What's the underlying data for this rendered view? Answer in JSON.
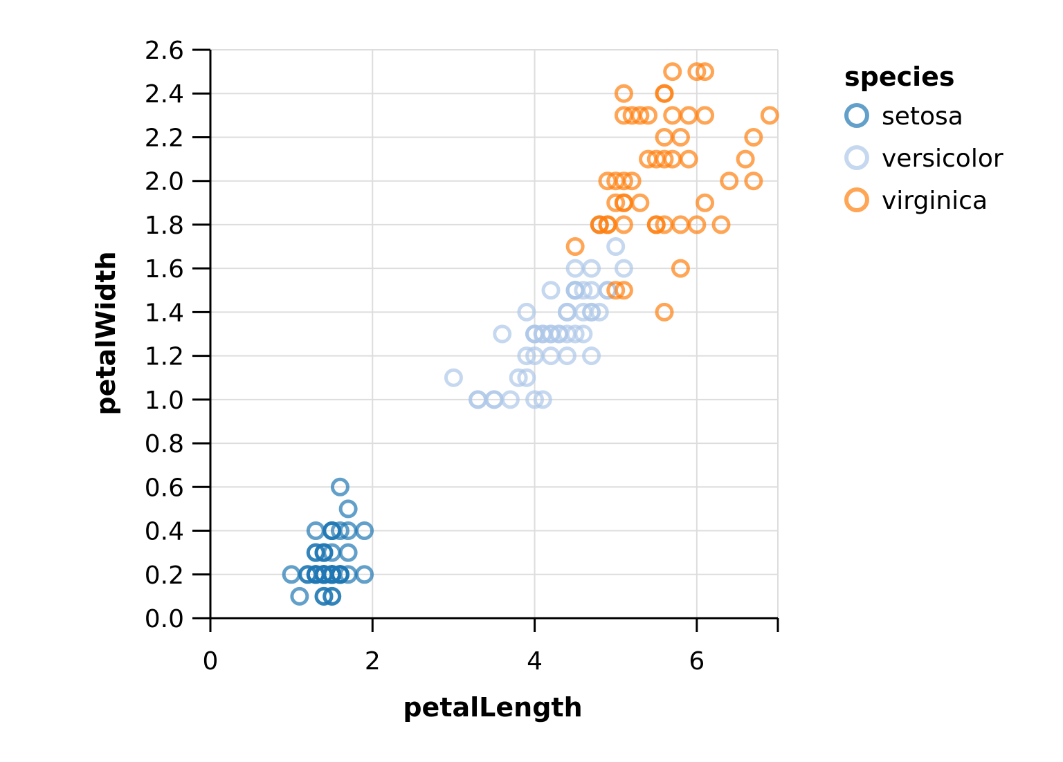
{
  "chart_data": {
    "type": "scatter",
    "xlabel": "petalLength",
    "ylabel": "petalWidth",
    "xlim": [
      0,
      7
    ],
    "ylim": [
      0,
      2.6
    ],
    "x_ticks": [
      0,
      2,
      4,
      6
    ],
    "y_ticks": [
      0.0,
      0.2,
      0.4,
      0.6,
      0.8,
      1.0,
      1.2,
      1.4,
      1.6,
      1.8,
      2.0,
      2.2,
      2.4,
      2.6
    ],
    "grid": true,
    "legend": {
      "title": "species",
      "placement": "right",
      "entries": [
        "setosa",
        "versicolor",
        "virginica"
      ]
    },
    "series": [
      {
        "name": "setosa",
        "color": "#1f77b4",
        "points": [
          [
            1.4,
            0.2
          ],
          [
            1.4,
            0.2
          ],
          [
            1.3,
            0.2
          ],
          [
            1.5,
            0.2
          ],
          [
            1.4,
            0.2
          ],
          [
            1.7,
            0.4
          ],
          [
            1.4,
            0.3
          ],
          [
            1.5,
            0.2
          ],
          [
            1.4,
            0.2
          ],
          [
            1.5,
            0.1
          ],
          [
            1.5,
            0.2
          ],
          [
            1.6,
            0.2
          ],
          [
            1.4,
            0.1
          ],
          [
            1.1,
            0.1
          ],
          [
            1.2,
            0.2
          ],
          [
            1.5,
            0.4
          ],
          [
            1.3,
            0.4
          ],
          [
            1.4,
            0.3
          ],
          [
            1.7,
            0.3
          ],
          [
            1.5,
            0.3
          ],
          [
            1.7,
            0.2
          ],
          [
            1.5,
            0.4
          ],
          [
            1.0,
            0.2
          ],
          [
            1.7,
            0.5
          ],
          [
            1.9,
            0.2
          ],
          [
            1.6,
            0.2
          ],
          [
            1.6,
            0.4
          ],
          [
            1.5,
            0.2
          ],
          [
            1.4,
            0.2
          ],
          [
            1.6,
            0.2
          ],
          [
            1.6,
            0.2
          ],
          [
            1.5,
            0.4
          ],
          [
            1.5,
            0.1
          ],
          [
            1.4,
            0.2
          ],
          [
            1.5,
            0.2
          ],
          [
            1.2,
            0.2
          ],
          [
            1.3,
            0.2
          ],
          [
            1.4,
            0.1
          ],
          [
            1.3,
            0.2
          ],
          [
            1.5,
            0.2
          ],
          [
            1.3,
            0.3
          ],
          [
            1.3,
            0.3
          ],
          [
            1.3,
            0.2
          ],
          [
            1.6,
            0.6
          ],
          [
            1.9,
            0.4
          ],
          [
            1.4,
            0.3
          ],
          [
            1.6,
            0.2
          ],
          [
            1.4,
            0.2
          ],
          [
            1.5,
            0.2
          ],
          [
            1.4,
            0.2
          ]
        ]
      },
      {
        "name": "versicolor",
        "color": "#aec7e8",
        "points": [
          [
            4.7,
            1.4
          ],
          [
            4.5,
            1.5
          ],
          [
            4.9,
            1.5
          ],
          [
            4.0,
            1.3
          ],
          [
            4.6,
            1.5
          ],
          [
            4.5,
            1.3
          ],
          [
            4.7,
            1.6
          ],
          [
            3.3,
            1.0
          ],
          [
            4.6,
            1.3
          ],
          [
            3.9,
            1.4
          ],
          [
            3.5,
            1.0
          ],
          [
            4.2,
            1.5
          ],
          [
            4.0,
            1.0
          ],
          [
            4.7,
            1.4
          ],
          [
            3.6,
            1.3
          ],
          [
            4.4,
            1.4
          ],
          [
            4.5,
            1.5
          ],
          [
            4.1,
            1.0
          ],
          [
            4.5,
            1.5
          ],
          [
            3.9,
            1.1
          ],
          [
            4.8,
            1.8
          ],
          [
            4.0,
            1.3
          ],
          [
            4.9,
            1.5
          ],
          [
            4.7,
            1.2
          ],
          [
            4.3,
            1.3
          ],
          [
            4.4,
            1.4
          ],
          [
            4.8,
            1.4
          ],
          [
            5.0,
            1.7
          ],
          [
            4.5,
            1.5
          ],
          [
            3.5,
            1.0
          ],
          [
            3.8,
            1.1
          ],
          [
            3.7,
            1.0
          ],
          [
            3.9,
            1.2
          ],
          [
            5.1,
            1.6
          ],
          [
            4.5,
            1.5
          ],
          [
            4.5,
            1.6
          ],
          [
            4.7,
            1.5
          ],
          [
            4.4,
            1.3
          ],
          [
            4.1,
            1.3
          ],
          [
            4.0,
            1.3
          ],
          [
            4.4,
            1.2
          ],
          [
            4.6,
            1.4
          ],
          [
            4.0,
            1.2
          ],
          [
            3.3,
            1.0
          ],
          [
            4.2,
            1.3
          ],
          [
            4.2,
            1.2
          ],
          [
            4.2,
            1.3
          ],
          [
            4.3,
            1.3
          ],
          [
            3.0,
            1.1
          ],
          [
            4.1,
            1.3
          ]
        ]
      },
      {
        "name": "virginica",
        "color": "#ff7f0e",
        "points": [
          [
            6.0,
            2.5
          ],
          [
            5.1,
            1.9
          ],
          [
            5.9,
            2.1
          ],
          [
            5.6,
            1.8
          ],
          [
            5.8,
            2.2
          ],
          [
            6.6,
            2.1
          ],
          [
            4.5,
            1.7
          ],
          [
            6.3,
            1.8
          ],
          [
            5.8,
            1.8
          ],
          [
            6.1,
            2.5
          ],
          [
            5.1,
            2.0
          ],
          [
            5.3,
            1.9
          ],
          [
            5.5,
            2.1
          ],
          [
            5.0,
            2.0
          ],
          [
            5.1,
            2.4
          ],
          [
            5.3,
            2.3
          ],
          [
            5.5,
            1.8
          ],
          [
            6.7,
            2.2
          ],
          [
            6.9,
            2.3
          ],
          [
            5.0,
            1.5
          ],
          [
            5.7,
            2.3
          ],
          [
            4.9,
            2.0
          ],
          [
            6.7,
            2.0
          ],
          [
            4.9,
            1.8
          ],
          [
            5.7,
            2.1
          ],
          [
            6.0,
            1.8
          ],
          [
            4.8,
            1.8
          ],
          [
            4.9,
            1.8
          ],
          [
            5.6,
            2.1
          ],
          [
            5.8,
            1.6
          ],
          [
            6.1,
            1.9
          ],
          [
            6.4,
            2.0
          ],
          [
            5.6,
            2.2
          ],
          [
            5.1,
            1.5
          ],
          [
            5.6,
            1.4
          ],
          [
            6.1,
            2.3
          ],
          [
            5.6,
            2.4
          ],
          [
            5.5,
            1.8
          ],
          [
            4.8,
            1.8
          ],
          [
            5.4,
            2.1
          ],
          [
            5.6,
            2.4
          ],
          [
            5.1,
            2.3
          ],
          [
            5.1,
            1.9
          ],
          [
            5.9,
            2.3
          ],
          [
            5.7,
            2.5
          ],
          [
            5.2,
            2.3
          ],
          [
            5.0,
            1.9
          ],
          [
            5.2,
            2.0
          ],
          [
            5.4,
            2.3
          ],
          [
            5.1,
            1.8
          ]
        ]
      }
    ]
  }
}
